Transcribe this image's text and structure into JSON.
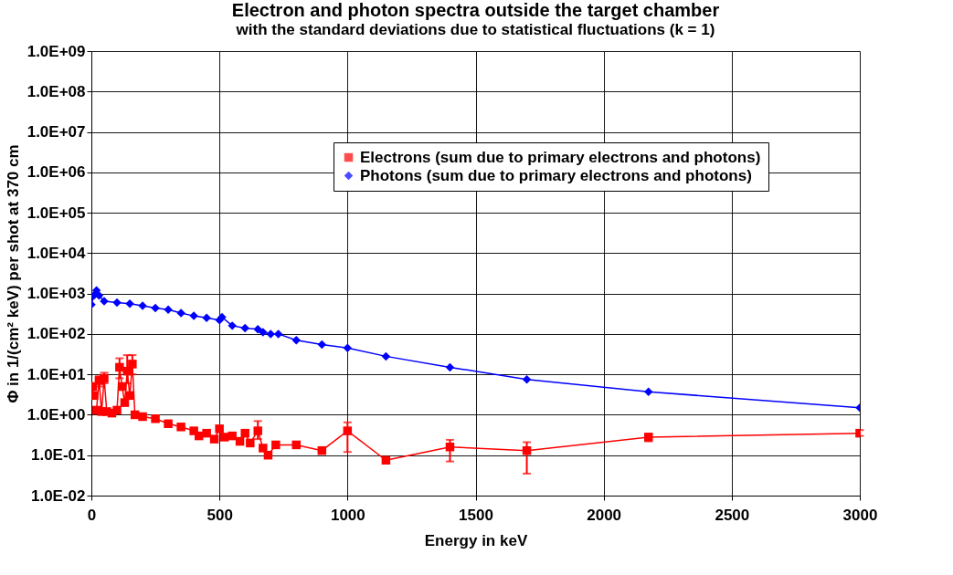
{
  "chart_data": {
    "type": "line",
    "title": "Electron and photon spectra outside the target chamber",
    "subtitle": "with the standard deviations due to statistical fluctuations (k = 1)",
    "xlabel": "Energy in keV",
    "ylabel": "Φ in 1/(cm² keV) per shot at 370 cm",
    "log": "y",
    "grid": true,
    "legend": "top right",
    "line_style": "solid",
    "xlim": [
      0,
      3000
    ],
    "xticks": [
      0,
      500,
      1000,
      1500,
      2000,
      2500,
      3000
    ],
    "ylim": [
      0.01,
      1000000000
    ],
    "yticks": [
      {
        "value": 0.01,
        "label": "1.0E-02"
      },
      {
        "value": 0.1,
        "label": "1.0E-01"
      },
      {
        "value": 1,
        "label": "1.0E+00"
      },
      {
        "value": 10,
        "label": "1.0E+01"
      },
      {
        "value": 100,
        "label": "1.0E+02"
      },
      {
        "value": 1000,
        "label": "1.0E+03"
      },
      {
        "value": 10000,
        "label": "1.0E+04"
      },
      {
        "value": 100000,
        "label": "1.0E+05"
      },
      {
        "value": 1000000,
        "label": "1.0E+06"
      },
      {
        "value": 10000000,
        "label": "1.0E+07"
      },
      {
        "value": 100000000,
        "label": "1.0E+08"
      },
      {
        "value": 1000000000,
        "label": "1.0E+09"
      }
    ],
    "series": [
      {
        "name": "Electrons (sum due to primary electrons and photons)",
        "color": "#ff0000",
        "marker": "square",
        "x": [
          5,
          10,
          15,
          20,
          30,
          40,
          50,
          60,
          80,
          100,
          110,
          120,
          130,
          140,
          150,
          160,
          170,
          200,
          250,
          300,
          350,
          400,
          420,
          450,
          480,
          500,
          520,
          550,
          580,
          600,
          620,
          650,
          670,
          690,
          720,
          800,
          900,
          1000,
          1150,
          1400,
          1700,
          2175,
          3000
        ],
        "values": [
          5,
          3,
          null,
          1.3,
          7,
          1.2,
          8,
          1.2,
          1.1,
          1.3,
          15,
          5,
          2,
          12,
          3,
          18,
          1.0,
          0.9,
          0.8,
          0.6,
          0.5,
          0.4,
          0.3,
          0.35,
          0.25,
          0.45,
          0.28,
          0.3,
          0.22,
          0.35,
          0.2,
          0.4,
          0.15,
          0.1,
          0.18,
          0.18,
          0.13,
          0.4,
          0.075,
          0.16,
          0.13,
          0.28,
          0.35
        ],
        "errors": [
          null,
          null,
          null,
          null,
          [
            5,
            9
          ],
          null,
          [
            6,
            11
          ],
          null,
          null,
          null,
          [
            8,
            25
          ],
          null,
          null,
          [
            6,
            30
          ],
          null,
          [
            10,
            30
          ],
          null,
          null,
          null,
          null,
          null,
          null,
          null,
          null,
          null,
          null,
          null,
          null,
          null,
          null,
          null,
          [
            0.25,
            0.7
          ],
          null,
          null,
          null,
          null,
          null,
          [
            0.12,
            0.65
          ],
          null,
          [
            0.07,
            0.24
          ],
          [
            0.035,
            0.21
          ],
          [
            0.22,
            0.34
          ],
          [
            0.3,
            0.42
          ]
        ]
      },
      {
        "name": "Photons (sum due to primary electrons and photons)",
        "color": "#0000ff",
        "marker": "diamond",
        "x": [
          0,
          10,
          20,
          30,
          50,
          100,
          150,
          200,
          250,
          300,
          350,
          400,
          450,
          500,
          510,
          550,
          600,
          650,
          670,
          700,
          730,
          800,
          900,
          1000,
          1150,
          1400,
          1700,
          2175,
          3000
        ],
        "values": [
          530,
          900,
          1200,
          900,
          650,
          600,
          560,
          500,
          440,
          400,
          330,
          280,
          250,
          220,
          260,
          160,
          140,
          130,
          110,
          100,
          100,
          70,
          55,
          45,
          28,
          15,
          7.5,
          3.7,
          1.5
        ]
      }
    ]
  }
}
